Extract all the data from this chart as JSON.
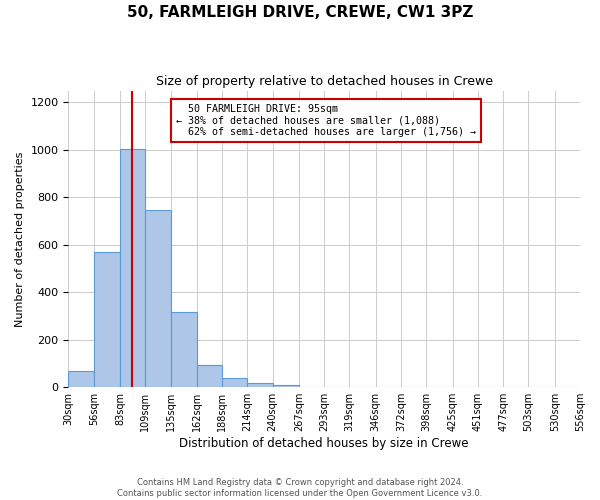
{
  "title": "50, FARMLEIGH DRIVE, CREWE, CW1 3PZ",
  "subtitle": "Size of property relative to detached houses in Crewe",
  "xlabel": "Distribution of detached houses by size in Crewe",
  "ylabel": "Number of detached properties",
  "bin_edges": [
    30,
    56,
    83,
    109,
    135,
    162,
    188,
    214,
    240,
    267,
    293,
    319,
    346,
    372,
    398,
    425,
    451,
    477,
    503,
    530,
    556
  ],
  "bin_counts": [
    68,
    570,
    1005,
    745,
    315,
    95,
    40,
    18,
    10,
    0,
    0,
    0,
    0,
    0,
    0,
    0,
    0,
    0,
    0,
    0
  ],
  "bar_color": "#aec6e8",
  "bar_edge_color": "#5b9bd5",
  "property_value": 95,
  "vline_color": "#cc0000",
  "annotation_text": "  50 FARMLEIGH DRIVE: 95sqm\n← 38% of detached houses are smaller (1,088)\n  62% of semi-detached houses are larger (1,756) →",
  "annotation_box_color": "#ffffff",
  "annotation_box_edge_color": "#cc0000",
  "ylim": [
    0,
    1250
  ],
  "yticks": [
    0,
    200,
    400,
    600,
    800,
    1000,
    1200
  ],
  "tick_labels": [
    "30sqm",
    "56sqm",
    "83sqm",
    "109sqm",
    "135sqm",
    "162sqm",
    "188sqm",
    "214sqm",
    "240sqm",
    "267sqm",
    "293sqm",
    "319sqm",
    "346sqm",
    "372sqm",
    "398sqm",
    "425sqm",
    "451sqm",
    "477sqm",
    "503sqm",
    "530sqm",
    "556sqm"
  ],
  "footer_text": "Contains HM Land Registry data © Crown copyright and database right 2024.\nContains public sector information licensed under the Open Government Licence v3.0.",
  "background_color": "#ffffff",
  "grid_color": "#cccccc"
}
